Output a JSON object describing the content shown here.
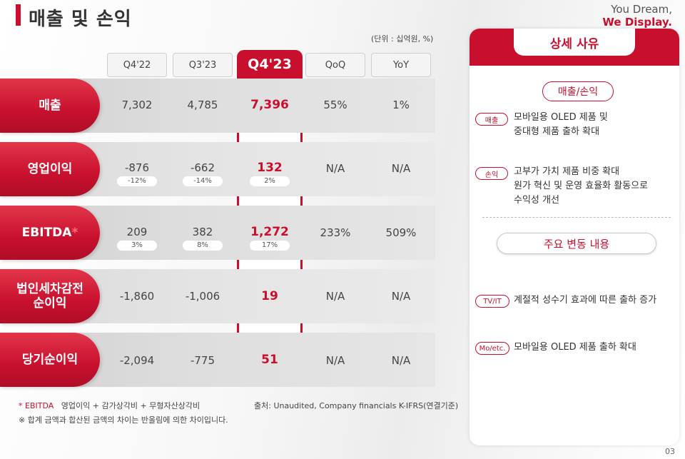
{
  "title": "매출 및 손익",
  "brand": {
    "line1": "You Dream,",
    "line2": "We Display."
  },
  "unit": "(단위 : 십억원, %)",
  "columns": [
    "Q4'22",
    "Q3'23",
    "Q4'23",
    "QoQ",
    "YoY"
  ],
  "rows": [
    {
      "label": "매출",
      "q4_22": "7,302",
      "q3_23": "4,785",
      "q4_23": "7,396",
      "qoq": "55%",
      "yoy": "1%"
    },
    {
      "label": "영업이익",
      "q4_22": "-876",
      "q3_23": "-662",
      "q4_23": "132",
      "qoq": "N/A",
      "yoy": "N/A",
      "pct": {
        "q4_22": "-12%",
        "q3_23": "-14%",
        "q4_23": "2%"
      }
    },
    {
      "label": "EBITDA",
      "label_mark": "*",
      "q4_22": "209",
      "q3_23": "382",
      "q4_23": "1,272",
      "qoq": "233%",
      "yoy": "509%",
      "pct": {
        "q4_22": "3%",
        "q3_23": "8%",
        "q4_23": "17%"
      }
    },
    {
      "label_line1": "법인세차감전",
      "label_line2": "순이익",
      "q4_22": "-1,860",
      "q3_23": "-1,006",
      "q4_23": "19",
      "qoq": "N/A",
      "yoy": "N/A"
    },
    {
      "label": "당기순이익",
      "q4_22": "-2,094",
      "q3_23": "-775",
      "q4_23": "51",
      "qoq": "N/A",
      "yoy": "N/A"
    }
  ],
  "footnotes": {
    "ebitda_mark": "* EBITDA",
    "ebitda_def": "영업이익 + 감가상각비 + 무형자산상각비",
    "rounding": "※ 합계 금액과 합산된 금액의 차이는 반올림에 의한 차이입니다.",
    "source": "출처: Unaudited, Company financials K-IFRS(연결기준)"
  },
  "page_number": "03",
  "panel": {
    "title": "상세 사유",
    "section1": "매출/손익",
    "reasons1": [
      {
        "tag": "매출",
        "line1": "모바일용 OLED 제품 및",
        "line2": "중대형 제품 출하 확대"
      },
      {
        "tag": "손익",
        "line1": "고부가 가치 제품 비중 확대",
        "line2": "원가 혁신 및 운영 효율화 활동으로",
        "line3": "수익성 개선"
      }
    ],
    "section2": "주요 변동 내용",
    "reasons2": [
      {
        "tag": "TV/IT",
        "text": "계절적 성수기 효과에 따른 출하 증가"
      },
      {
        "tag": "Mo/etc.",
        "text": "모바일용 OLED 제품 출하 확대"
      }
    ]
  },
  "colors": {
    "accent": "#c8102e"
  }
}
